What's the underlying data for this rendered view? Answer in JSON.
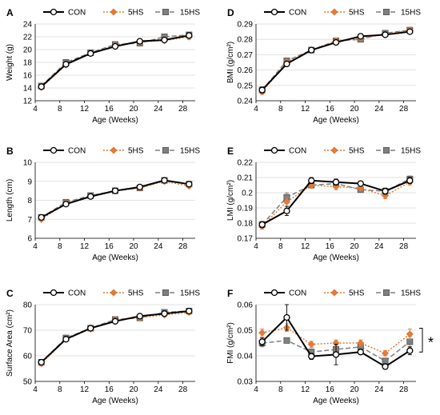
{
  "colors": {
    "CON": "#000000",
    "5HS": "#E07B39",
    "15HS": "#7F7F7F",
    "axis": "#000000",
    "grid": "#D9D9D9"
  },
  "legend": [
    "CON",
    "5HS",
    "15HS"
  ],
  "significance_marker": "*",
  "chart_data": [
    {
      "panel": "A",
      "type": "line",
      "ylabel": "Weight (g)",
      "xlabel": "Age (Weeks)",
      "x": [
        5,
        9,
        13,
        17,
        21,
        25,
        29
      ],
      "xlim": [
        4,
        30
      ],
      "xticks": [
        4,
        8,
        12,
        16,
        20,
        24,
        28
      ],
      "ylim": [
        12,
        24
      ],
      "yticks": [
        12,
        14,
        16,
        18,
        20,
        22,
        24
      ],
      "ytick_labels": [
        "12",
        "14",
        "16",
        "18",
        "20",
        "22",
        "24"
      ],
      "series": [
        {
          "name": "CON",
          "values": [
            14.2,
            17.7,
            19.4,
            20.5,
            21.3,
            21.5,
            22.2
          ],
          "err": [
            0.3,
            0.3,
            0.3,
            0.3,
            0.3,
            0.3,
            0.4
          ]
        },
        {
          "name": "5HS",
          "values": [
            14.1,
            17.6,
            19.4,
            20.6,
            21.2,
            21.4,
            22.0
          ],
          "err": [
            0.3,
            0.3,
            0.3,
            0.3,
            0.3,
            0.3,
            0.4
          ]
        },
        {
          "name": "15HS",
          "values": [
            14.3,
            18.0,
            19.5,
            20.8,
            21.0,
            22.0,
            22.3
          ],
          "err": [
            0.3,
            0.3,
            0.3,
            0.3,
            0.3,
            0.3,
            0.4
          ]
        }
      ]
    },
    {
      "panel": "D",
      "type": "line",
      "ylabel": "BMI (g/cm²)",
      "xlabel": "Age (Weeks)",
      "x": [
        5,
        9,
        13,
        17,
        21,
        25,
        29
      ],
      "xlim": [
        4,
        30
      ],
      "xticks": [
        4,
        8,
        12,
        16,
        20,
        24,
        28
      ],
      "ylim": [
        0.24,
        0.29
      ],
      "yticks": [
        0.24,
        0.25,
        0.26,
        0.27,
        0.28,
        0.29
      ],
      "ytick_labels": [
        "0.24",
        "0.25",
        "0.26",
        "0.27",
        "0.28",
        "0.29"
      ],
      "series": [
        {
          "name": "CON",
          "values": [
            0.247,
            0.264,
            0.273,
            0.278,
            0.282,
            0.283,
            0.285
          ],
          "err": [
            0.002,
            0.001,
            0.001,
            0.001,
            0.001,
            0.001,
            0.001
          ]
        },
        {
          "name": "5HS",
          "values": [
            0.246,
            0.265,
            0.273,
            0.279,
            0.281,
            0.283,
            0.286
          ],
          "err": [
            0.002,
            0.001,
            0.001,
            0.001,
            0.001,
            0.001,
            0.001
          ]
        },
        {
          "name": "15HS",
          "values": [
            0.247,
            0.266,
            0.273,
            0.279,
            0.28,
            0.284,
            0.286
          ],
          "err": [
            0.002,
            0.001,
            0.001,
            0.001,
            0.001,
            0.001,
            0.001
          ]
        }
      ]
    },
    {
      "panel": "B",
      "type": "line",
      "ylabel": "Length (cm)",
      "xlabel": "Age (Weeks)",
      "x": [
        5,
        9,
        13,
        17,
        21,
        25,
        29
      ],
      "xlim": [
        4,
        30
      ],
      "xticks": [
        4,
        8,
        12,
        16,
        20,
        24,
        28
      ],
      "ylim": [
        6,
        10
      ],
      "yticks": [
        6,
        7,
        8,
        9,
        10
      ],
      "ytick_labels": [
        "6",
        "7",
        "8",
        "9",
        "10"
      ],
      "series": [
        {
          "name": "CON",
          "values": [
            7.1,
            7.8,
            8.2,
            8.5,
            8.7,
            9.05,
            8.85
          ],
          "err": [
            0.1,
            0.1,
            0.1,
            0.1,
            0.1,
            0.1,
            0.1
          ]
        },
        {
          "name": "5HS",
          "values": [
            7.0,
            7.85,
            8.2,
            8.5,
            8.65,
            9.0,
            8.75
          ],
          "err": [
            0.1,
            0.1,
            0.1,
            0.1,
            0.1,
            0.1,
            0.1
          ]
        },
        {
          "name": "15HS",
          "values": [
            7.1,
            7.9,
            8.25,
            8.5,
            8.65,
            9.05,
            8.85
          ],
          "err": [
            0.1,
            0.1,
            0.1,
            0.1,
            0.1,
            0.1,
            0.1
          ]
        }
      ]
    },
    {
      "panel": "E",
      "type": "line",
      "ylabel": "LMI (g/cm²)",
      "xlabel": "Age (Weeks)",
      "x": [
        5,
        9,
        13,
        17,
        21,
        25,
        29
      ],
      "xlim": [
        4,
        30
      ],
      "xticks": [
        4,
        8,
        12,
        16,
        20,
        24,
        28
      ],
      "ylim": [
        0.17,
        0.22
      ],
      "yticks": [
        0.17,
        0.18,
        0.19,
        0.2,
        0.21,
        0.22
      ],
      "ytick_labels": [
        "0.17",
        "0.18",
        "0.19",
        "0.2",
        "0.21",
        "0.22"
      ],
      "series": [
        {
          "name": "CON",
          "values": [
            0.179,
            0.188,
            0.208,
            0.207,
            0.206,
            0.201,
            0.208
          ],
          "err": [
            0.002,
            0.003,
            0.002,
            0.002,
            0.001,
            0.002,
            0.002
          ]
        },
        {
          "name": "5HS",
          "values": [
            0.178,
            0.194,
            0.205,
            0.204,
            0.203,
            0.198,
            0.207
          ],
          "err": [
            0.002,
            0.003,
            0.002,
            0.002,
            0.001,
            0.002,
            0.002
          ]
        },
        {
          "name": "15HS",
          "values": [
            0.179,
            0.197,
            0.205,
            0.206,
            0.202,
            0.201,
            0.209
          ],
          "err": [
            0.002,
            0.003,
            0.002,
            0.002,
            0.001,
            0.002,
            0.002
          ]
        }
      ]
    },
    {
      "panel": "C",
      "type": "line",
      "ylabel": "Surface Area (cm²)",
      "xlabel": "Age (Weeks)",
      "x": [
        5,
        9,
        13,
        17,
        21,
        25,
        29
      ],
      "xlim": [
        4,
        30
      ],
      "xticks": [
        4,
        8,
        12,
        16,
        20,
        24,
        28
      ],
      "ylim": [
        50,
        80
      ],
      "yticks": [
        50,
        60,
        70,
        80
      ],
      "ytick_labels": [
        "50",
        "60",
        "70",
        "80"
      ],
      "series": [
        {
          "name": "CON",
          "values": [
            57.5,
            66.5,
            70.8,
            73.5,
            75.5,
            76.5,
            77.5
          ],
          "err": [
            1.0,
            0.8,
            0.8,
            0.8,
            0.8,
            0.8,
            0.8
          ]
        },
        {
          "name": "5HS",
          "values": [
            57.0,
            66.5,
            70.5,
            74.0,
            75.0,
            76.0,
            77.0
          ],
          "err": [
            1.0,
            0.8,
            0.8,
            0.8,
            0.8,
            0.8,
            0.8
          ]
        },
        {
          "name": "15HS",
          "values": [
            57.5,
            67.0,
            70.8,
            74.2,
            74.8,
            77.0,
            77.5
          ],
          "err": [
            1.0,
            0.8,
            0.8,
            0.8,
            0.8,
            0.8,
            0.8
          ]
        }
      ]
    },
    {
      "panel": "F",
      "type": "line",
      "ylabel": "FMI (g/cm²)",
      "xlabel": "Age (Weeks)",
      "x": [
        5,
        9,
        13,
        17,
        21,
        25,
        29
      ],
      "xlim": [
        4,
        30
      ],
      "xticks": [
        4,
        8,
        12,
        16,
        20,
        24,
        28
      ],
      "ylim": [
        0.03,
        0.06
      ],
      "yticks": [
        0.03,
        0.04,
        0.05,
        0.06
      ],
      "ytick_labels": [
        "0.03",
        "0.04",
        "0.05",
        "0.06"
      ],
      "series": [
        {
          "name": "CON",
          "values": [
            0.0455,
            0.055,
            0.0398,
            0.0405,
            0.0415,
            0.0358,
            0.042
          ],
          "err": [
            0.0015,
            0.005,
            0.0012,
            0.004,
            0.001,
            0.001,
            0.0015
          ]
        },
        {
          "name": "5HS",
          "values": [
            0.049,
            0.051,
            0.0445,
            0.045,
            0.045,
            0.041,
            0.0485
          ],
          "err": [
            0.0015,
            0.0015,
            0.0012,
            0.0012,
            0.0012,
            0.001,
            0.002
          ]
        },
        {
          "name": "15HS",
          "values": [
            0.045,
            0.046,
            0.0415,
            0.0425,
            0.0435,
            0.038,
            0.0455
          ],
          "err": [
            0.0015,
            0.001,
            0.0012,
            0.0012,
            0.0012,
            0.001,
            0.002
          ]
        }
      ]
    }
  ]
}
